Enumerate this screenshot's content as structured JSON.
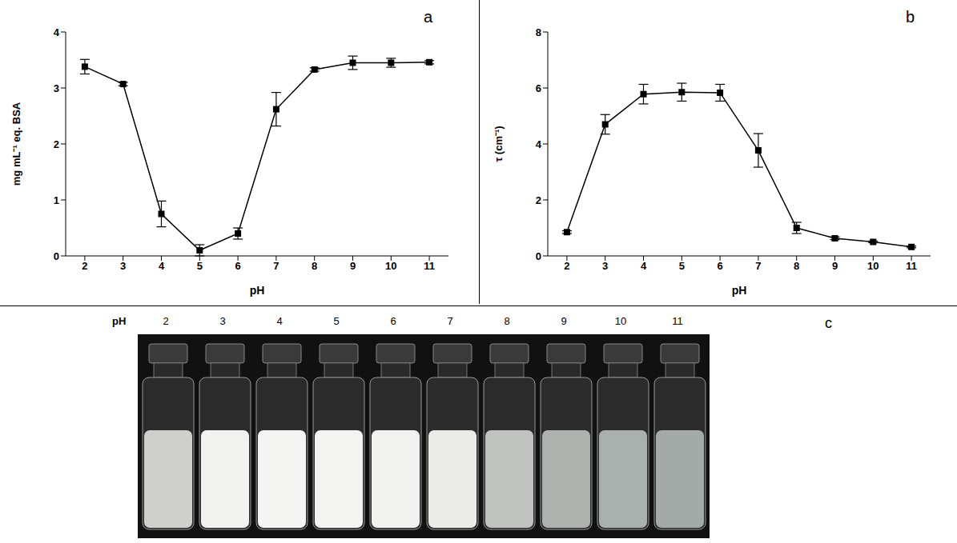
{
  "chart_data": [
    {
      "type": "line",
      "annotation": "a",
      "x_label": "pH",
      "y_label": "mg mL⁻¹ eq. BSA",
      "x": [
        2,
        3,
        4,
        5,
        6,
        7,
        8,
        9,
        10,
        11
      ],
      "values": [
        3.38,
        3.07,
        0.75,
        0.1,
        0.4,
        2.62,
        3.33,
        3.45,
        3.45,
        3.46
      ],
      "errors": [
        0.13,
        0.03,
        0.23,
        0.1,
        0.1,
        0.3,
        0.03,
        0.12,
        0.08,
        0.03
      ],
      "xlim": [
        1.5,
        11.5
      ],
      "xticks": [
        2,
        3,
        4,
        5,
        6,
        7,
        8,
        9,
        10,
        11
      ],
      "ylim": [
        0,
        4
      ],
      "yticks": [
        0,
        1,
        2,
        3,
        4
      ],
      "color": "#000000",
      "marker": "square",
      "grid": false
    },
    {
      "type": "line",
      "annotation": "b",
      "x_label": "pH",
      "y_label": "τ (cm⁻¹)",
      "x": [
        2,
        3,
        4,
        5,
        6,
        7,
        8,
        9,
        10,
        11
      ],
      "values": [
        0.85,
        4.7,
        5.78,
        5.85,
        5.83,
        3.77,
        1.0,
        0.63,
        0.5,
        0.32
      ],
      "errors": [
        0.05,
        0.35,
        0.35,
        0.32,
        0.3,
        0.6,
        0.2,
        0.05,
        0.03,
        0.03
      ],
      "xlim": [
        1.5,
        11.5
      ],
      "xticks": [
        2,
        3,
        4,
        5,
        6,
        7,
        8,
        9,
        10,
        11
      ],
      "ylim": [
        0,
        8
      ],
      "yticks": [
        0,
        2,
        4,
        6,
        8
      ],
      "color": "#000000",
      "marker": "square",
      "grid": false
    }
  ],
  "photo": {
    "annotation": "c",
    "row_label": "pH",
    "vials": [
      "2",
      "3",
      "4",
      "5",
      "6",
      "7",
      "8",
      "9",
      "10",
      "11"
    ]
  }
}
